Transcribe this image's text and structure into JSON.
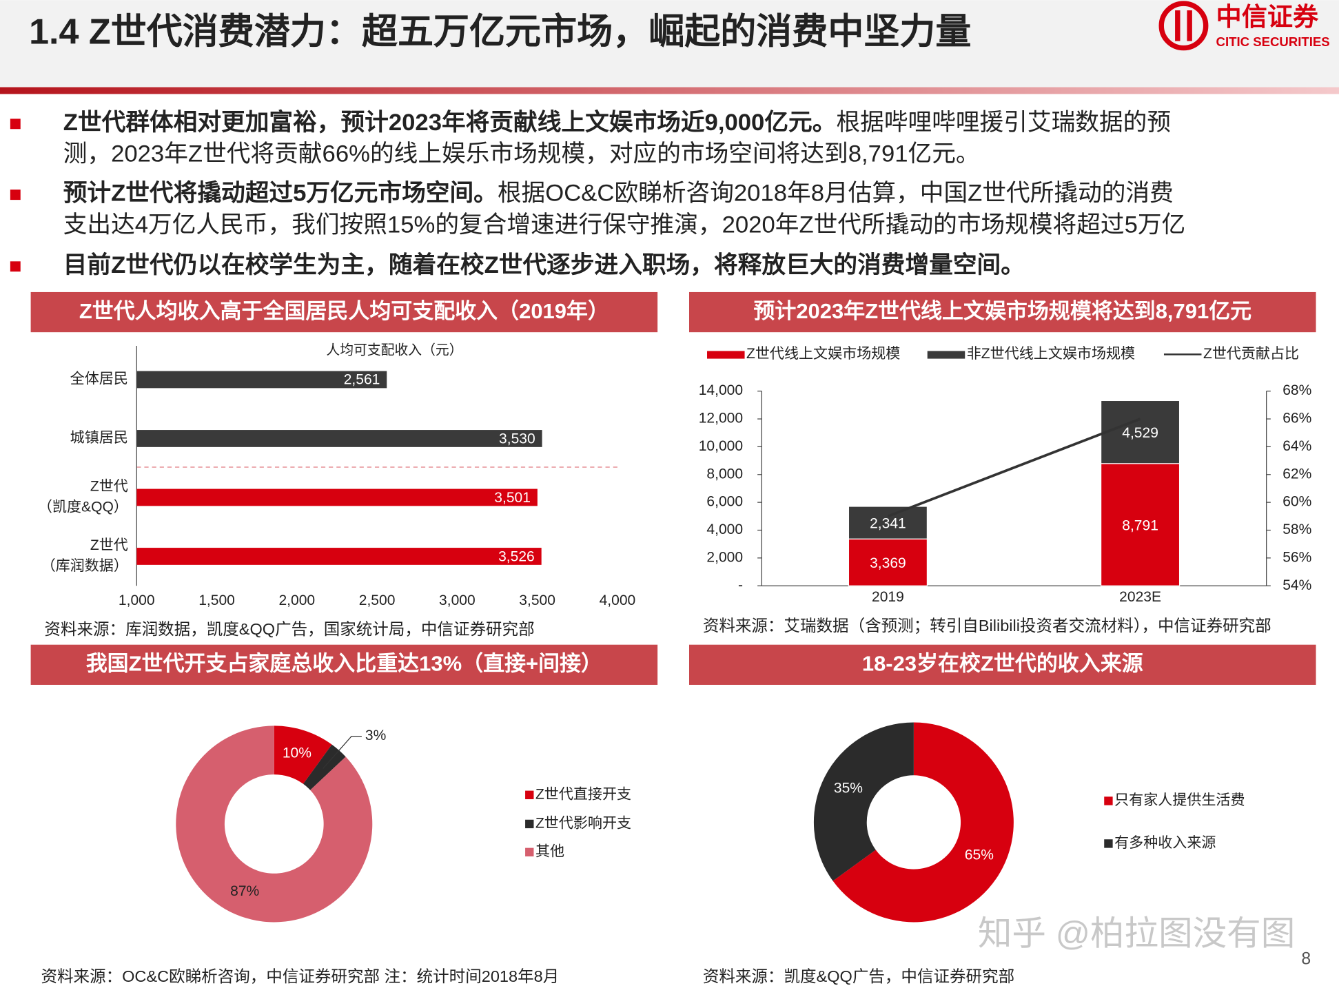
{
  "header": {
    "title": "1.4 Z世代消费潜力：超五万亿元市场，崛起的消费中坚力量",
    "logo_cn": "中信证券",
    "logo_en": "CITIC SECURITIES"
  },
  "bullets": [
    {
      "lines": [
        [
          "Z世代群体相对更加富裕，预计2023年将贡献线上文娱市场近9,000亿元。",
          "根据哔哩哔哩援引艾瑞数据的预"
        ],
        [
          "测，2023年Z世代将贡献66%的线上娱乐市场规模，对应的市场空间将达到8,791亿元。"
        ]
      ]
    },
    {
      "lines": [
        [
          "预计Z世代将撬动超过5万亿元市场空间。",
          "根据OC&C欧睇析咨询2018年8月估算，中国Z世代所撬动的消费"
        ],
        [
          "支出达4万亿人民币，我们按照15%的复合增速进行保守推演，2020年Z世代所撬动的市场规模将超过5万亿"
        ]
      ]
    },
    {
      "lines": [
        [
          "目前Z世代仍以在校学生为主，随着在校Z世代逐步进入职场，将释放巨大的消费增量空间。"
        ]
      ]
    }
  ],
  "chart_data": [
    {
      "type": "bar",
      "orientation": "horizontal",
      "title": "Z世代人均收入高于全国居民人均可支配收入（2019年）",
      "x_label": "人均可支配收入（元）",
      "categories": [
        [
          "全体居民"
        ],
        [
          "城镇居民"
        ],
        [
          "Z世代",
          "（凯度&QQ）"
        ],
        [
          "Z世代",
          "（库润数据）"
        ]
      ],
      "values": [
        2561,
        3530,
        3501,
        3526
      ],
      "value_labels": [
        "2,561",
        "3,530",
        "3,501",
        "3,526"
      ],
      "colors": [
        "#3a3a3a",
        "#3a3a3a",
        "#d7000f",
        "#d7000f"
      ],
      "xlim": [
        1000,
        4000
      ],
      "xticks": [
        {
          "value": 1000,
          "label": "1,000"
        },
        {
          "value": 1500,
          "label": "1,500"
        },
        {
          "value": 2000,
          "label": "2,000"
        },
        {
          "value": 2500,
          "label": "2,500"
        },
        {
          "value": 3000,
          "label": "3,000"
        },
        {
          "value": 3500,
          "label": "3,500"
        },
        {
          "value": 4000,
          "label": "4,000"
        }
      ],
      "source": "资料来源：库润数据，凯度&QQ广告，国家统计局，中信证券研究部"
    },
    {
      "type": "bar",
      "stacked": true,
      "title": "预计2023年Z世代线上文娱市场规模将达到8,791亿元",
      "categories": [
        "2019",
        "2023E"
      ],
      "series": [
        {
          "name": "Z世代线上文娱市场规模",
          "color": "#d7000f",
          "values": [
            3369,
            8791
          ],
          "value_labels": [
            "3,369",
            "8,791"
          ]
        },
        {
          "name": "非Z世代线上文娱市场规模",
          "color": "#3a3a3a",
          "values": [
            2341,
            4529
          ],
          "value_labels": [
            "2,341",
            "4,529"
          ]
        },
        {
          "name": "Z世代贡献占比",
          "color": "#333333",
          "type": "line",
          "axis": "y2",
          "values": [
            59,
            66
          ]
        }
      ],
      "ylim": [
        0,
        14000
      ],
      "yticks": [
        {
          "value": 0,
          "label": "-"
        },
        {
          "value": 2000,
          "label": "2,000"
        },
        {
          "value": 4000,
          "label": "4,000"
        },
        {
          "value": 6000,
          "label": "6,000"
        },
        {
          "value": 8000,
          "label": "8,000"
        },
        {
          "value": 10000,
          "label": "10,000"
        },
        {
          "value": 12000,
          "label": "12,000"
        },
        {
          "value": 14000,
          "label": "14,000"
        }
      ],
      "y2lim": [
        54,
        68
      ],
      "y2ticks": [
        {
          "value": 54,
          "label": "54%"
        },
        {
          "value": 56,
          "label": "56%"
        },
        {
          "value": 58,
          "label": "58%"
        },
        {
          "value": 60,
          "label": "60%"
        },
        {
          "value": 62,
          "label": "62%"
        },
        {
          "value": 64,
          "label": "64%"
        },
        {
          "value": 66,
          "label": "66%"
        },
        {
          "value": 68,
          "label": "68%"
        }
      ],
      "source": "资料来源：艾瑞数据（含预测；转引自Bilibili投资者交流材料），中信证券研究部"
    },
    {
      "type": "pie",
      "donut": true,
      "title": "我国Z世代开支占家庭总收入比重达13%（直接+间接）",
      "categories": [
        "Z世代直接开支",
        "Z世代影响开支",
        "其他"
      ],
      "values": [
        10,
        3,
        87
      ],
      "value_labels": [
        "10%",
        "3%",
        "87%"
      ],
      "colors": [
        "#d7000f",
        "#2b2b2b",
        "#d65f6e"
      ],
      "source": "资料来源：OC&C欧睇析咨询，中信证券研究部 注：统计时间2018年8月"
    },
    {
      "type": "pie",
      "donut": true,
      "title": "18-23岁在校Z世代的收入来源",
      "categories": [
        "只有家人提供生活费",
        "有多种收入来源"
      ],
      "values": [
        65,
        35
      ],
      "value_labels": [
        "65%",
        "35%"
      ],
      "colors": [
        "#d7000f",
        "#2b2b2b"
      ],
      "source": "资料来源：凯度&QQ广告，中信证券研究部"
    }
  ],
  "watermark": "知乎 @柏拉图没有图",
  "page_number": "8"
}
